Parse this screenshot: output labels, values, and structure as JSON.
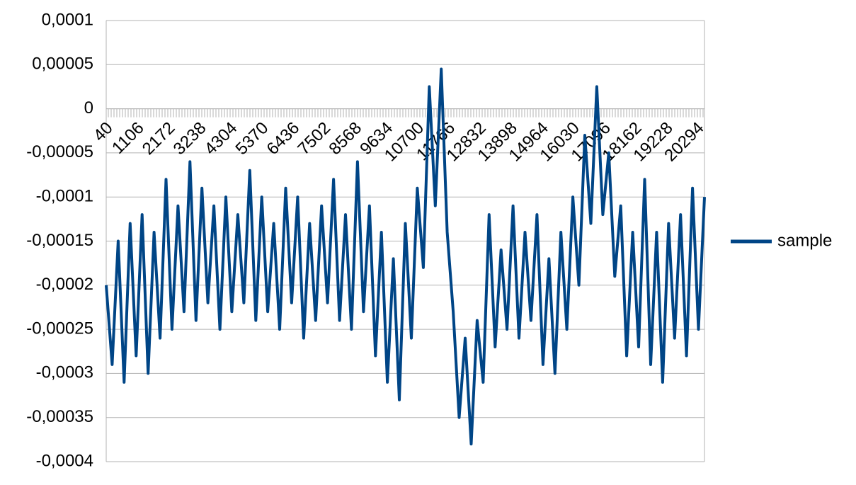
{
  "chart_data": {
    "type": "line",
    "x": [
      40,
      245,
      450,
      655,
      860,
      1065,
      1270,
      1475,
      1680,
      1885,
      2090,
      2295,
      2500,
      2705,
      2910,
      3115,
      3320,
      3525,
      3730,
      3935,
      4140,
      4345,
      4550,
      4755,
      4960,
      5165,
      5370,
      5575,
      5780,
      5985,
      6190,
      6395,
      6600,
      6805,
      7010,
      7215,
      7420,
      7625,
      7830,
      8035,
      8240,
      8445,
      8650,
      8855,
      9060,
      9265,
      9470,
      9675,
      9880,
      10085,
      10290,
      10495,
      10700,
      10905,
      11110,
      11315,
      11520,
      11725,
      11930,
      12135,
      12340,
      12545,
      12750,
      12955,
      13160,
      13365,
      13570,
      13775,
      13980,
      14185,
      14390,
      14595,
      14800,
      15005,
      15210,
      15415,
      15620,
      15825,
      16030,
      16235,
      16440,
      16645,
      16850,
      17055,
      17260,
      17465,
      17670,
      17875,
      18080,
      18285,
      18490,
      18695,
      18900,
      19105,
      19310,
      19515,
      19720,
      19925,
      20130,
      20335,
      20540
    ],
    "series": [
      {
        "name": "sample",
        "color": "#004586",
        "values": [
          -0.0002,
          -0.00029,
          -0.00015,
          -0.00031,
          -0.00013,
          -0.00028,
          -0.00012,
          -0.0003,
          -0.00014,
          -0.00026,
          -8e-05,
          -0.00025,
          -0.00011,
          -0.00023,
          -6e-05,
          -0.00024,
          -9e-05,
          -0.00022,
          -0.00011,
          -0.00025,
          -0.0001,
          -0.00023,
          -0.00012,
          -0.00022,
          -7e-05,
          -0.00024,
          -0.0001,
          -0.00023,
          -0.00013,
          -0.00025,
          -9e-05,
          -0.00022,
          -0.0001,
          -0.00026,
          -0.00013,
          -0.00024,
          -0.00011,
          -0.00022,
          -8e-05,
          -0.00024,
          -0.00012,
          -0.00025,
          -6e-05,
          -0.00023,
          -0.00011,
          -0.00028,
          -0.00014,
          -0.00031,
          -0.00017,
          -0.00033,
          -0.00013,
          -0.00026,
          -9e-05,
          -0.00018,
          2.5e-05,
          -0.00011,
          4.5e-05,
          -0.00014,
          -0.00023,
          -0.00035,
          -0.00026,
          -0.00038,
          -0.00024,
          -0.00031,
          -0.00012,
          -0.00027,
          -0.00016,
          -0.00025,
          -0.00011,
          -0.00026,
          -0.00014,
          -0.00024,
          -0.00012,
          -0.00029,
          -0.00017,
          -0.0003,
          -0.00014,
          -0.00025,
          -0.0001,
          -0.0002,
          -3e-05,
          -0.00013,
          2.5e-05,
          -0.00012,
          -5e-05,
          -0.00019,
          -0.00011,
          -0.00028,
          -0.00014,
          -0.00027,
          -8e-05,
          -0.00029,
          -0.00014,
          -0.00031,
          -0.00013,
          -0.00026,
          -0.00012,
          -0.00028,
          -9e-05,
          -0.00025,
          -0.0001
        ]
      }
    ],
    "xlim": [
      40,
      20540
    ],
    "xticks": [
      40,
      1106,
      2172,
      3238,
      4304,
      5370,
      6436,
      7502,
      8568,
      9634,
      10700,
      11766,
      12832,
      13898,
      14964,
      16030,
      17096,
      18162,
      19228,
      20294
    ],
    "ylim": [
      -0.0004,
      0.0001
    ],
    "yticks": [
      {
        "value": 0.0001,
        "label": "0,0001"
      },
      {
        "value": 5e-05,
        "label": "0,00005"
      },
      0,
      {
        "value": -5e-05,
        "label": "-0,00005"
      },
      {
        "value": -0.0001,
        "label": "-0,0001"
      },
      {
        "value": -0.00015,
        "label": "-0,00015"
      },
      {
        "value": -0.0002,
        "label": "-0,0002"
      },
      {
        "value": -0.00025,
        "label": "-0,00025"
      },
      {
        "value": -0.0003,
        "label": "-0,0003"
      },
      {
        "value": -0.00035,
        "label": "-0,00035"
      },
      {
        "value": -0.0004,
        "label": "-0,0004"
      }
    ],
    "grid": true,
    "legend": "right"
  }
}
